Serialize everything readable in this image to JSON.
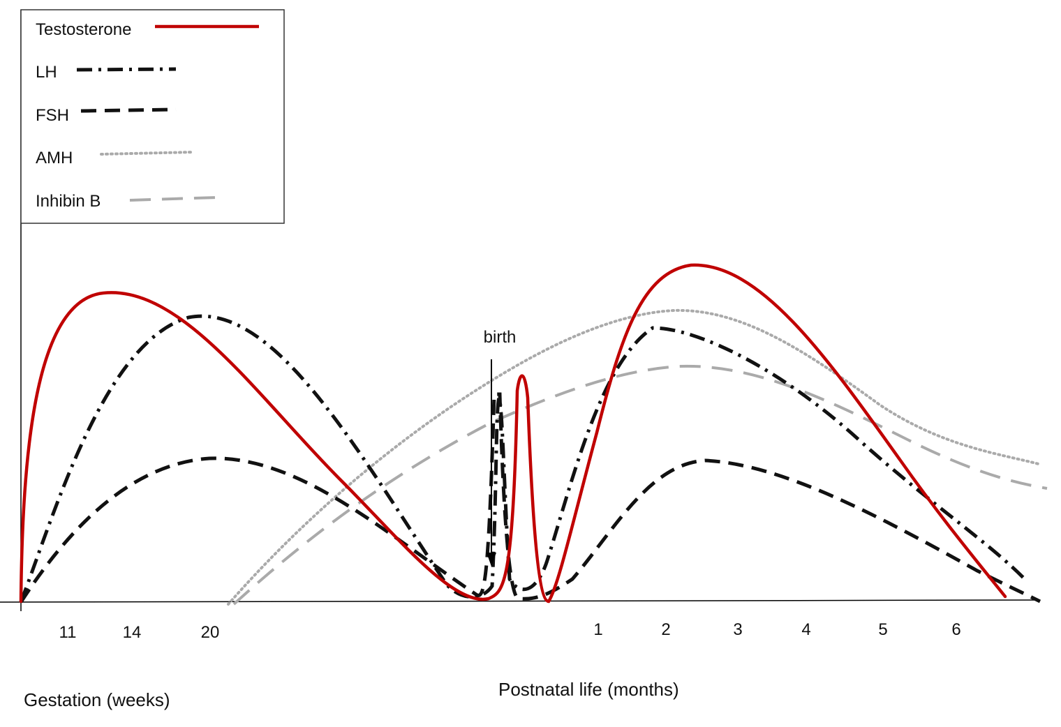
{
  "chart_data": {
    "type": "line",
    "title": "",
    "ylabel": "",
    "y_ticks_shown": false,
    "grid": false,
    "legend_placement": "top-left",
    "x_segments": [
      {
        "label": "Gestation (weeks)",
        "unit": "weeks",
        "ticks": [
          "11",
          "14",
          "20"
        ]
      },
      {
        "label": "Postnatal life (months)",
        "unit": "months",
        "ticks": [
          "1",
          "2",
          "3",
          "4",
          "5",
          "6"
        ]
      }
    ],
    "annotations": [
      {
        "text": "birth",
        "x": "birth"
      }
    ],
    "colors": {
      "testosterone": "#c00000",
      "lh": "#111111",
      "fsh": "#111111",
      "amh": "#a9a9a9",
      "inhibin_b": "#a9a9a9"
    },
    "series": [
      {
        "name": "Testosterone",
        "style": "solid",
        "points": [
          {
            "x": "7 wk",
            "y": 0.0
          },
          {
            "x": "8 wk",
            "y": 0.55
          },
          {
            "x": "10 wk",
            "y": 0.9
          },
          {
            "x": "13 wk",
            "y": 1.0
          },
          {
            "x": "17 wk",
            "y": 0.9
          },
          {
            "x": "22 wk",
            "y": 0.68
          },
          {
            "x": "28 wk",
            "y": 0.38
          },
          {
            "x": "34 wk",
            "y": 0.12
          },
          {
            "x": "birth",
            "y": 0.01
          },
          {
            "x": "~1 wk",
            "y": 0.73
          },
          {
            "x": "~2 wk",
            "y": 0.0
          },
          {
            "x": "1 mo",
            "y": 0.55
          },
          {
            "x": "1.5 mo",
            "y": 0.92
          },
          {
            "x": "2.3 mo",
            "y": 1.09
          },
          {
            "x": "3.5 mo",
            "y": 0.78
          },
          {
            "x": "5 mo",
            "y": 0.4
          },
          {
            "x": "6.5 mo",
            "y": 0.02
          }
        ]
      },
      {
        "name": "LH",
        "style": "dash-dot",
        "points": [
          {
            "x": "7 wk",
            "y": 0.0
          },
          {
            "x": "10 wk",
            "y": 0.42
          },
          {
            "x": "15 wk",
            "y": 0.83
          },
          {
            "x": "19 wk",
            "y": 0.92
          },
          {
            "x": "23 wk",
            "y": 0.82
          },
          {
            "x": "28 wk",
            "y": 0.45
          },
          {
            "x": "34 wk",
            "y": 0.05
          },
          {
            "x": "birth",
            "y": 0.02
          },
          {
            "x": "~1 wk",
            "y": 0.66
          },
          {
            "x": "~2 wk",
            "y": 0.1
          },
          {
            "x": "1 mo",
            "y": 0.7
          },
          {
            "x": "1.8 mo",
            "y": 0.89
          },
          {
            "x": "3 mo",
            "y": 0.73
          },
          {
            "x": "5 mo",
            "y": 0.4
          },
          {
            "x": "7 mo",
            "y": 0.07
          }
        ]
      },
      {
        "name": "FSH",
        "style": "dashed",
        "points": [
          {
            "x": "7 wk",
            "y": 0.0
          },
          {
            "x": "12 wk",
            "y": 0.25
          },
          {
            "x": "20 wk",
            "y": 0.47
          },
          {
            "x": "25 wk",
            "y": 0.38
          },
          {
            "x": "30 wk",
            "y": 0.14
          },
          {
            "x": "34 wk",
            "y": 0.02
          },
          {
            "x": "birth",
            "y": 0.03
          },
          {
            "x": "~1 wk",
            "y": 0.67
          },
          {
            "x": "~2 wk",
            "y": 0.02
          },
          {
            "x": "1 mo",
            "y": 0.25
          },
          {
            "x": "2.4 mo",
            "y": 0.45
          },
          {
            "x": "4 mo",
            "y": 0.35
          },
          {
            "x": "6 mo",
            "y": 0.15
          },
          {
            "x": "7.2 mo",
            "y": 0.0
          }
        ]
      },
      {
        "name": "AMH",
        "style": "dotted",
        "points": [
          {
            "x": "21 wk",
            "y": 0.0
          },
          {
            "x": "26 wk",
            "y": 0.35
          },
          {
            "x": "birth",
            "y": 0.7
          },
          {
            "x": "1 mo",
            "y": 0.88
          },
          {
            "x": "2 mo",
            "y": 0.94
          },
          {
            "x": "3 mo",
            "y": 0.88
          },
          {
            "x": "5 mo",
            "y": 0.55
          },
          {
            "x": "7.2 mo",
            "y": 0.45
          }
        ]
      },
      {
        "name": "Inhibin B",
        "style": "long-dash",
        "points": [
          {
            "x": "21 wk",
            "y": 0.0
          },
          {
            "x": "27 wk",
            "y": 0.3
          },
          {
            "x": "birth",
            "y": 0.6
          },
          {
            "x": "1 mo",
            "y": 0.72
          },
          {
            "x": "2.2 mo",
            "y": 0.76
          },
          {
            "x": "4 mo",
            "y": 0.68
          },
          {
            "x": "7.2 mo",
            "y": 0.37
          }
        ]
      }
    ]
  }
}
